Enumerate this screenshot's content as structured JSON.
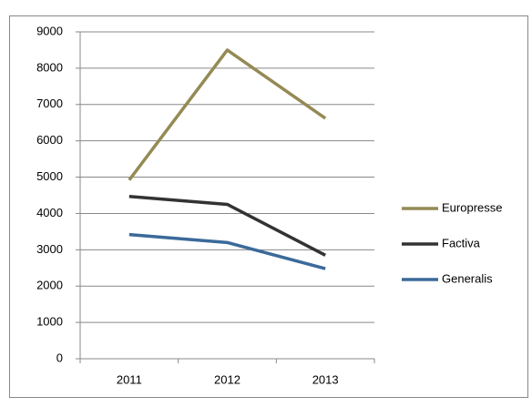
{
  "chart_data": {
    "type": "line",
    "categories": [
      "2011",
      "2012",
      "2013"
    ],
    "series": [
      {
        "name": "Europresse",
        "color": "#948a54",
        "values": [
          4920,
          8500,
          6620
        ]
      },
      {
        "name": "Factiva",
        "color": "#333333",
        "values": [
          4470,
          4250,
          2850
        ]
      },
      {
        "name": "Generalis",
        "color": "#3b6a9a",
        "values": [
          3420,
          3200,
          2480
        ]
      }
    ],
    "ylim": [
      0,
      9000
    ],
    "yticks": [
      0,
      1000,
      2000,
      3000,
      4000,
      5000,
      6000,
      7000,
      8000,
      9000
    ],
    "grid": true,
    "legend": "right"
  }
}
